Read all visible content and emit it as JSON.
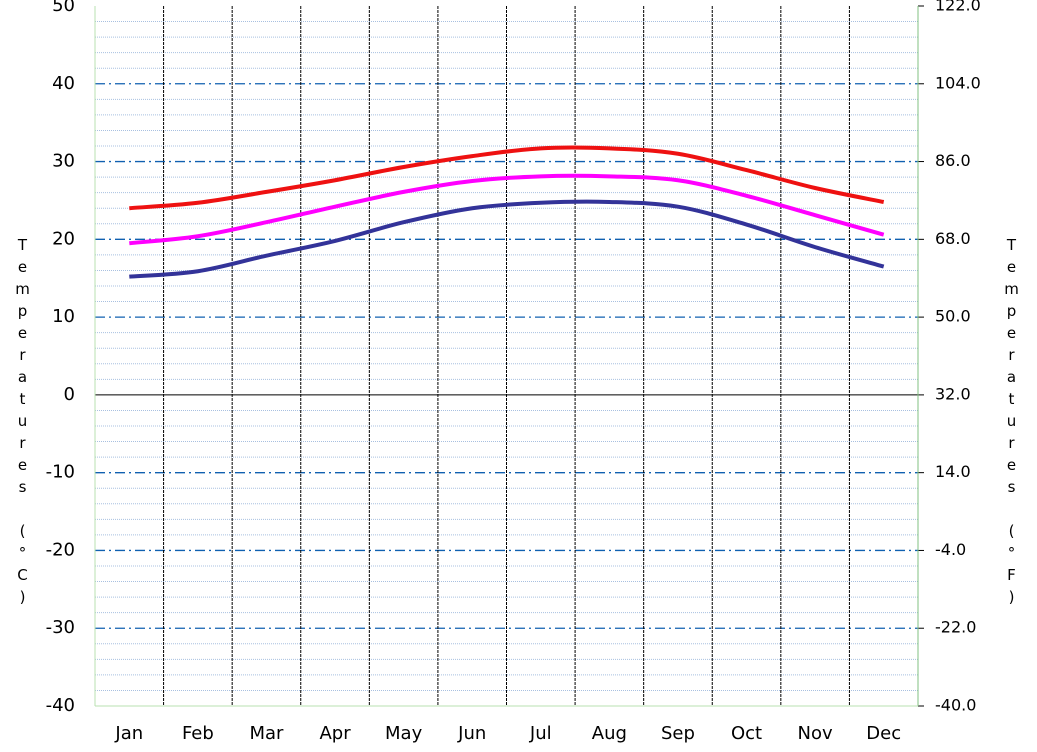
{
  "chart_data": {
    "type": "line",
    "categories": [
      "Jan",
      "Feb",
      "Mar",
      "Apr",
      "May",
      "Jun",
      "Jul",
      "Aug",
      "Sep",
      "Oct",
      "Nov",
      "Dec"
    ],
    "series": [
      {
        "color": "#ee1111",
        "values": [
          24.0,
          24.7,
          26.1,
          27.6,
          29.3,
          30.7,
          31.7,
          31.7,
          31.0,
          28.9,
          26.6,
          24.8
        ]
      },
      {
        "color": "#ff00ff",
        "values": [
          19.5,
          20.4,
          22.2,
          24.2,
          26.1,
          27.5,
          28.1,
          28.1,
          27.6,
          25.6,
          23.1,
          20.6
        ]
      },
      {
        "color": "#333399",
        "values": [
          15.2,
          15.9,
          17.9,
          19.8,
          22.2,
          24.0,
          24.7,
          24.8,
          24.2,
          21.9,
          19.0,
          16.5
        ]
      }
    ],
    "ylim": [
      -40,
      50
    ],
    "yticks": [
      -40,
      -30,
      -20,
      -10,
      0,
      10,
      20,
      30,
      40,
      50
    ],
    "y2lim": [
      -40,
      122
    ],
    "y2ticks": [
      {
        "value": -40,
        "label": "-40.0"
      },
      {
        "value": -22,
        "label": "-22.0"
      },
      {
        "value": -4,
        "label": "-4.0"
      },
      {
        "value": 14,
        "label": "14.0"
      },
      {
        "value": 32,
        "label": "32.0"
      },
      {
        "value": 50,
        "label": "50.0"
      },
      {
        "value": 68,
        "label": "68.0"
      },
      {
        "value": 86,
        "label": "86.0"
      },
      {
        "value": 104,
        "label": "104.0"
      },
      {
        "value": 122,
        "label": "122.0"
      }
    ],
    "ylabel": "Temperatures (°C)",
    "y2label": "Temperatures (°F)",
    "grid": true
  }
}
